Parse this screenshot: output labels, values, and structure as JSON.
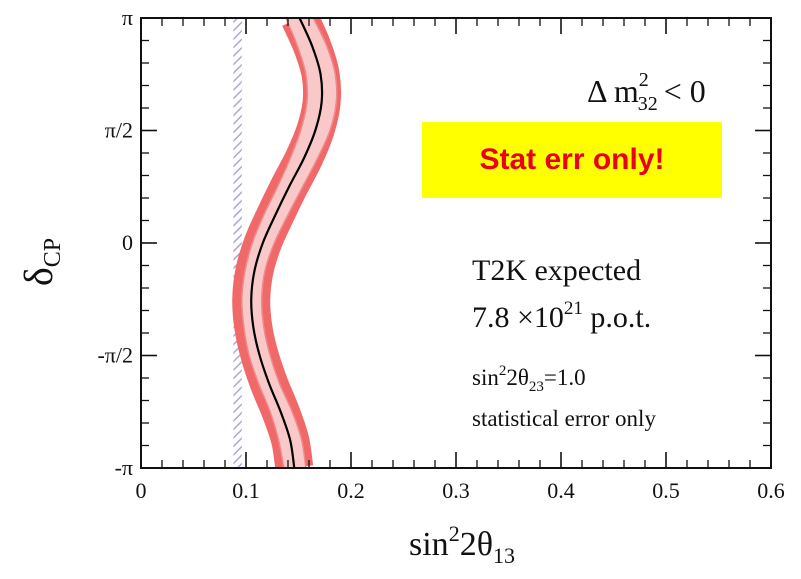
{
  "chart_data": {
    "type": "line",
    "xlabel_base": "sin",
    "xlabel_sup": "2",
    "xlabel_rest": "2θ",
    "xlabel_sub": "13",
    "ylabel_main": "δ",
    "ylabel_sub": "CP",
    "xlim": [
      0,
      0.6
    ],
    "ylim": [
      -3.14159,
      3.14159
    ],
    "x_ticks": [
      0,
      0.1,
      0.2,
      0.3,
      0.4,
      0.5,
      0.6
    ],
    "x_tick_labels": [
      "0",
      "0.1",
      "0.2",
      "0.3",
      "0.4",
      "0.5",
      "0.6"
    ],
    "y_ticks": [
      -3.14159,
      -1.5708,
      0,
      1.5708,
      3.14159
    ],
    "y_tick_labels": [
      "-π",
      "-π/2",
      "0",
      "π/2",
      "π"
    ],
    "series": [
      {
        "role": "central",
        "color": "#000000",
        "x": [
          0.146,
          0.142,
          0.133,
          0.122,
          0.113,
          0.107,
          0.105,
          0.108,
          0.116,
          0.128,
          0.141,
          0.155,
          0.166,
          0.172,
          0.171,
          0.163,
          0.151
        ],
        "y": [
          -3.14159,
          -2.7489,
          -2.3562,
          -1.9635,
          -1.5708,
          -1.1781,
          -0.7854,
          -0.3927,
          0,
          0.3927,
          0.7854,
          1.1781,
          1.5708,
          1.9635,
          2.3562,
          2.7489,
          3.14159
        ]
      },
      {
        "role": "band-inner-left",
        "color": "#f08a8a",
        "x": [
          0.136,
          0.131,
          0.123,
          0.112,
          0.103,
          0.098,
          0.096,
          0.099,
          0.106,
          0.117,
          0.13,
          0.142,
          0.152,
          0.158,
          0.157,
          0.149,
          0.138
        ],
        "y": [
          -3.14159,
          -2.7489,
          -2.3562,
          -1.9635,
          -1.5708,
          -1.1781,
          -0.7854,
          -0.3927,
          0,
          0.3927,
          0.7854,
          1.1781,
          1.5708,
          1.9635,
          2.3562,
          2.7489,
          3.14159
        ]
      },
      {
        "role": "band-inner-right",
        "color": "#f08a8a",
        "x": [
          0.157,
          0.153,
          0.144,
          0.132,
          0.123,
          0.117,
          0.115,
          0.118,
          0.127,
          0.14,
          0.154,
          0.168,
          0.18,
          0.186,
          0.185,
          0.177,
          0.164
        ],
        "y": [
          -3.14159,
          -2.7489,
          -2.3562,
          -1.9635,
          -1.5708,
          -1.1781,
          -0.7854,
          -0.3927,
          0,
          0.3927,
          0.7854,
          1.1781,
          1.5708,
          1.9635,
          2.3562,
          2.7489,
          3.14159
        ]
      }
    ],
    "band_outer_color": "#f06868",
    "band_fill_color": "#f9c8c8",
    "hatched_band": {
      "x": [
        0.088,
        0.096
      ],
      "color": "#a8a8d8"
    },
    "grid": false
  },
  "annotations": {
    "dm_prefix": "Δ m",
    "dm_sup": "2",
    "dm_sub": "32",
    "dm_suffix": "< 0",
    "t2k_line1": "T2K expected",
    "t2k_line2_a": "7.8 ×10",
    "t2k_line2_sup": "21",
    "t2k_line2_b": " p.o.t.",
    "theta_a": "sin",
    "theta_sup": "2",
    "theta_b": "2θ",
    "theta_sub": "23",
    "theta_c": "=1.0",
    "stat_note": "statistical error only"
  },
  "stat_box": {
    "label": "Stat err only!",
    "bg": "#ffff00",
    "color": "#e8001c"
  }
}
